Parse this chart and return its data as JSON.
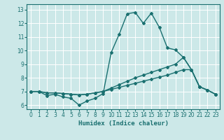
{
  "xlabel": "Humidex (Indice chaleur)",
  "bg_color": "#cce8e8",
  "line_color": "#1a7070",
  "grid_color": "#ffffff",
  "xlim": [
    -0.5,
    23.5
  ],
  "ylim": [
    5.7,
    13.4
  ],
  "xticks": [
    0,
    1,
    2,
    3,
    4,
    5,
    6,
    7,
    8,
    9,
    10,
    11,
    12,
    13,
    14,
    15,
    16,
    17,
    18,
    19,
    20,
    21,
    22,
    23
  ],
  "yticks": [
    6,
    7,
    8,
    9,
    10,
    11,
    12,
    13
  ],
  "line1_x": [
    0,
    1,
    2,
    3,
    4,
    5,
    6,
    7,
    8,
    9,
    10,
    11,
    12,
    13,
    14,
    15,
    16,
    17,
    18,
    19,
    20,
    21,
    22,
    23
  ],
  "line1_y": [
    7.0,
    7.0,
    6.7,
    6.8,
    6.6,
    6.5,
    6.0,
    6.3,
    6.5,
    6.85,
    9.85,
    11.2,
    12.7,
    12.8,
    12.0,
    12.75,
    11.7,
    10.2,
    10.05,
    9.5,
    8.6,
    7.35,
    7.1,
    6.8
  ],
  "line2_x": [
    0,
    1,
    2,
    3,
    4,
    5,
    6,
    7,
    8,
    9,
    10,
    11,
    12,
    13,
    14,
    15,
    16,
    17,
    18,
    19,
    20,
    21,
    22,
    23
  ],
  "line2_y": [
    7.0,
    7.0,
    6.9,
    6.9,
    6.85,
    6.8,
    6.75,
    6.8,
    6.9,
    7.0,
    7.15,
    7.3,
    7.45,
    7.6,
    7.75,
    7.9,
    8.05,
    8.2,
    8.4,
    8.6,
    8.6,
    7.35,
    7.1,
    6.8
  ],
  "line3_x": [
    0,
    1,
    2,
    3,
    4,
    5,
    6,
    7,
    8,
    9,
    10,
    11,
    12,
    13,
    14,
    15,
    16,
    17,
    18,
    19,
    20,
    21,
    22,
    23
  ],
  "line3_y": [
    7.0,
    7.0,
    6.9,
    6.9,
    6.85,
    6.8,
    6.75,
    6.8,
    6.9,
    7.0,
    7.25,
    7.5,
    7.75,
    8.0,
    8.2,
    8.4,
    8.6,
    8.8,
    9.0,
    9.5,
    8.6,
    7.35,
    7.1,
    6.8
  ],
  "marker": "D",
  "marker_size": 2.0,
  "linewidth": 1.0
}
